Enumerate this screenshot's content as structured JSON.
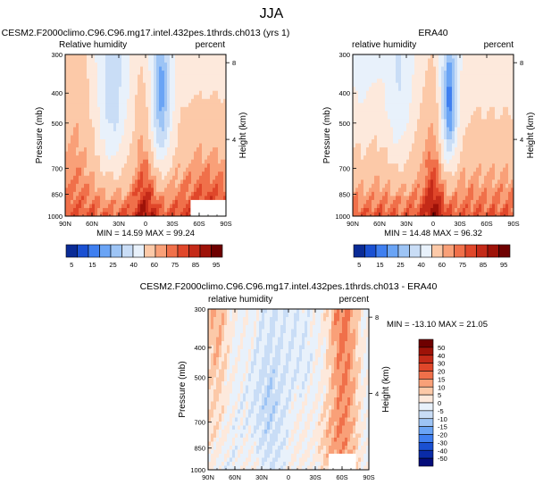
{
  "figure": {
    "title": "JJA"
  },
  "colors": {
    "seq_palette": [
      "#0a2b96",
      "#1a50d2",
      "#3f7ff0",
      "#6aa4f5",
      "#9dc4f5",
      "#c9ddf6",
      "#e8f1fb",
      "#fde9dc",
      "#fcc9a8",
      "#f9a078",
      "#f0704a",
      "#e0472a",
      "#c42a18",
      "#9e1208",
      "#6e0000"
    ],
    "diff_palette": [
      "#040c7a",
      "#0a2ba8",
      "#1a50d2",
      "#3f7ff0",
      "#6aa4f5",
      "#9dc4f5",
      "#c9ddf6",
      "#e8f1fb",
      "#fde9dc",
      "#fcc9a8",
      "#f9a078",
      "#f0704a",
      "#e0472a",
      "#c42a18",
      "#9e1208",
      "#6e0000"
    ]
  },
  "chart_data": [
    {
      "type": "heatmap",
      "title": "CESM2.F2000climo.C96.C96.mg17.intel.432pes.1thrds.ch013 (yrs 1)",
      "left_label": "Relative humidity",
      "right_label": "percent",
      "ylabel": "Pressure (mb)",
      "y2label": "Height (km)",
      "x_ticks": [
        "90N",
        "60N",
        "30N",
        "0",
        "30S",
        "60S",
        "90S"
      ],
      "y_ticks": [
        "300",
        "400",
        "500",
        "700",
        "850",
        "1000"
      ],
      "y2_ticks": [
        "8",
        "4"
      ],
      "stats": "MIN = 14.59   MAX = 99.24",
      "min": 14.59,
      "max": 99.24,
      "colorbar_labels": [
        "5",
        "15",
        "25",
        "40",
        "60",
        "75",
        "85",
        "95"
      ]
    },
    {
      "type": "heatmap",
      "title": "ERA40",
      "left_label": "relative humidity",
      "right_label": "percent",
      "ylabel": "Pressure (mb)",
      "y2label": "Height (km)",
      "x_ticks": [
        "90N",
        "60N",
        "30N",
        "0",
        "30S",
        "60S",
        "90S"
      ],
      "y_ticks": [
        "300",
        "400",
        "500",
        "700",
        "850",
        "1000"
      ],
      "y2_ticks": [
        "8",
        "4"
      ],
      "stats": "MIN = 14.48   MAX = 96.32",
      "min": 14.48,
      "max": 96.32,
      "colorbar_labels": [
        "5",
        "15",
        "25",
        "40",
        "60",
        "75",
        "85",
        "95"
      ]
    },
    {
      "type": "heatmap",
      "title": "CESM2.F2000climo.C96.C96.mg17.intel.432pes.1thrds.ch013 - ERA40",
      "left_label": "relative humidity",
      "right_label": "percent",
      "ylabel": "Pressure (mb)",
      "y2label": "Height (km)",
      "x_ticks": [
        "90N",
        "60N",
        "30N",
        "0",
        "30S",
        "60S",
        "90S"
      ],
      "y_ticks": [
        "300",
        "400",
        "500",
        "700",
        "850",
        "1000"
      ],
      "y2_ticks": [
        "8",
        "4"
      ],
      "stats": "MIN = -13.10   MAX = 21.05",
      "min": -13.1,
      "max": 21.05,
      "colorbar_labels": [
        "50",
        "40",
        "30",
        "20",
        "15",
        "10",
        "5",
        "0",
        "-5",
        "-10",
        "-15",
        "-20",
        "-30",
        "-40",
        "-50"
      ]
    }
  ]
}
